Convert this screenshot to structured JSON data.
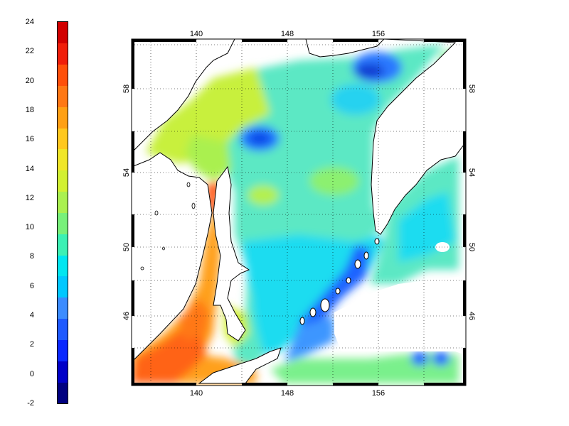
{
  "colorbar": {
    "ticks": [
      "24",
      "22",
      "20",
      "18",
      "16",
      "14",
      "12",
      "10",
      "8",
      "6",
      "4",
      "2",
      "0",
      "-2"
    ],
    "min": -2,
    "max": 24,
    "colors": [
      "#000080",
      "#0000c8",
      "#0a28ff",
      "#1e5aff",
      "#3c8cff",
      "#00c8ff",
      "#00e6f0",
      "#3cf0b4",
      "#78f07a",
      "#aaf050",
      "#d2f032",
      "#f0e628",
      "#ffc81e",
      "#ffa014",
      "#ff7814",
      "#ff500a",
      "#f01e0a",
      "#d20000"
    ]
  },
  "map": {
    "top_lon_labels": [
      "140",
      "148",
      "156"
    ],
    "bottom_lon_labels": [
      "140",
      "148",
      "156"
    ],
    "left_lat_labels": [
      "58",
      "54",
      "50",
      "46"
    ],
    "right_lat_labels": [
      "58",
      "54",
      "50",
      "46"
    ],
    "lon_range": [
      136.5,
      165.5
    ],
    "lat_range": [
      42.0,
      60.5
    ],
    "land_color": "#ffffff",
    "grid": "dotted"
  }
}
